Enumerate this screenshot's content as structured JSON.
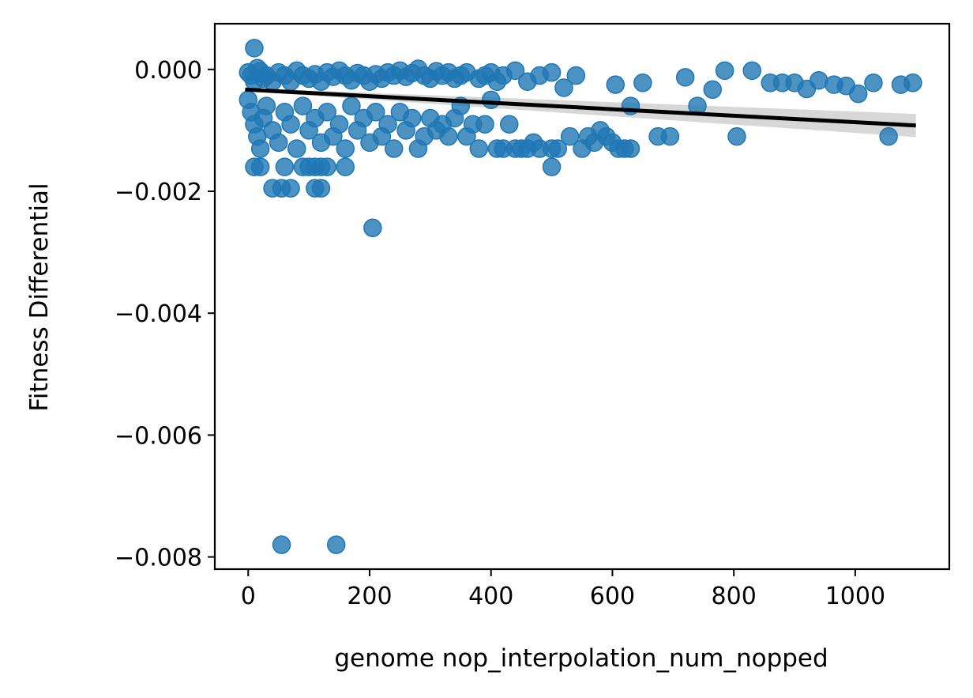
{
  "chart_data": {
    "type": "scatter",
    "xlabel": "genome nop_interpolation_num_nopped",
    "ylabel": "Fitness Differential",
    "xlim": [
      -55,
      1155
    ],
    "ylim": [
      -0.0082,
      0.00075
    ],
    "x_ticks": [
      0,
      200,
      400,
      600,
      800,
      1000
    ],
    "y_ticks": [
      0.0,
      -0.002,
      -0.004,
      -0.006,
      -0.008
    ],
    "x_tick_labels": [
      "0",
      "200",
      "400",
      "600",
      "800",
      "1000"
    ],
    "y_tick_labels": [
      "0.000",
      "−0.002",
      "−0.004",
      "−0.006",
      "−0.008"
    ],
    "grid": false,
    "legend": false,
    "point_color": "#1f77b4",
    "line_color": "#000000",
    "band_color": "#d0d0d0",
    "series": [
      {
        "points": [
          [
            0,
            -5e-05
          ],
          [
            5,
            -0.0001
          ],
          [
            10,
            -0.0002
          ],
          [
            15,
            2e-05
          ],
          [
            20,
            -3e-05
          ],
          [
            25,
            -0.00015
          ],
          [
            30,
            -0.0001
          ],
          [
            40,
            -0.0002
          ],
          [
            50,
            -5e-05
          ],
          [
            60,
            -0.0001
          ],
          [
            70,
            -0.0002
          ],
          [
            80,
            -2e-05
          ],
          [
            90,
            -0.0001
          ],
          [
            100,
            -0.00015
          ],
          [
            110,
            -8e-05
          ],
          [
            120,
            -0.0002
          ],
          [
            130,
            -5e-05
          ],
          [
            140,
            -0.00012
          ],
          [
            150,
            -2e-05
          ],
          [
            160,
            -0.0001
          ],
          [
            170,
            -0.00018
          ],
          [
            180,
            -6e-05
          ],
          [
            190,
            -0.0001
          ],
          [
            200,
            -0.0002
          ],
          [
            210,
            -8e-05
          ],
          [
            220,
            -0.00015
          ],
          [
            230,
            -5e-05
          ],
          [
            240,
            -0.0001
          ],
          [
            250,
            -2e-05
          ],
          [
            260,
            -0.00012
          ],
          [
            270,
            -6e-05
          ],
          [
            280,
            1e-05
          ],
          [
            290,
            -0.0001
          ],
          [
            300,
            -0.00015
          ],
          [
            310,
            -3e-05
          ],
          [
            320,
            -0.0001
          ],
          [
            330,
            -5e-05
          ],
          [
            340,
            -0.00015
          ],
          [
            350,
            -0.0001
          ],
          [
            360,
            -5e-05
          ],
          [
            380,
            -0.00015
          ],
          [
            390,
            -0.0001
          ],
          [
            400,
            -5e-05
          ],
          [
            410,
            -0.0002
          ],
          [
            420,
            -0.0001
          ],
          [
            440,
            -2e-05
          ],
          [
            460,
            -0.0002
          ],
          [
            480,
            -0.0001
          ],
          [
            500,
            -5e-05
          ],
          [
            520,
            -0.0003
          ],
          [
            540,
            -0.0001
          ],
          [
            0,
            -0.0005
          ],
          [
            5,
            -0.0007
          ],
          [
            10,
            -0.0009
          ],
          [
            15,
            -0.0011
          ],
          [
            20,
            -0.0013
          ],
          [
            25,
            -0.0008
          ],
          [
            30,
            -0.0006
          ],
          [
            40,
            -0.001
          ],
          [
            50,
            -0.0012
          ],
          [
            60,
            -0.0007
          ],
          [
            70,
            -0.0009
          ],
          [
            80,
            -0.0013
          ],
          [
            90,
            -0.0006
          ],
          [
            100,
            -0.001
          ],
          [
            110,
            -0.0008
          ],
          [
            120,
            -0.0012
          ],
          [
            130,
            -0.0007
          ],
          [
            140,
            -0.0011
          ],
          [
            150,
            -0.0009
          ],
          [
            160,
            -0.0013
          ],
          [
            170,
            -0.0006
          ],
          [
            180,
            -0.001
          ],
          [
            190,
            -0.0008
          ],
          [
            200,
            -0.0012
          ],
          [
            210,
            -0.0007
          ],
          [
            220,
            -0.0011
          ],
          [
            230,
            -0.0009
          ],
          [
            240,
            -0.0013
          ],
          [
            250,
            -0.0007
          ],
          [
            260,
            -0.001
          ],
          [
            270,
            -0.0008
          ],
          [
            280,
            -0.0013
          ],
          [
            290,
            -0.0011
          ],
          [
            300,
            -0.0008
          ],
          [
            310,
            -0.001
          ],
          [
            320,
            -0.0009
          ],
          [
            330,
            -0.0011
          ],
          [
            340,
            -0.0008
          ],
          [
            350,
            -0.0006
          ],
          [
            360,
            -0.0011
          ],
          [
            370,
            -0.0009
          ],
          [
            380,
            -0.0013
          ],
          [
            390,
            -0.0009
          ],
          [
            400,
            -0.0005
          ],
          [
            410,
            -0.0013
          ],
          [
            420,
            -0.0013
          ],
          [
            430,
            -0.0009
          ],
          [
            440,
            -0.0013
          ],
          [
            450,
            -0.0013
          ],
          [
            460,
            -0.0013
          ],
          [
            470,
            -0.0012
          ],
          [
            480,
            -0.0013
          ],
          [
            500,
            -0.0013
          ],
          [
            510,
            -0.0013
          ],
          [
            530,
            -0.0011
          ],
          [
            550,
            -0.0013
          ],
          [
            560,
            -0.0011
          ],
          [
            570,
            -0.0012
          ],
          [
            580,
            -0.001
          ],
          [
            590,
            -0.0011
          ],
          [
            600,
            -0.0012
          ],
          [
            610,
            -0.0013
          ],
          [
            620,
            -0.0013
          ],
          [
            630,
            -0.0013
          ],
          [
            10,
            -0.0016
          ],
          [
            20,
            -0.0016
          ],
          [
            60,
            -0.0016
          ],
          [
            90,
            -0.0016
          ],
          [
            100,
            -0.0016
          ],
          [
            110,
            -0.0016
          ],
          [
            120,
            -0.0016
          ],
          [
            130,
            -0.0016
          ],
          [
            160,
            -0.0016
          ],
          [
            500,
            -0.0016
          ],
          [
            40,
            -0.00195
          ],
          [
            55,
            -0.00195
          ],
          [
            70,
            -0.00195
          ],
          [
            110,
            -0.00195
          ],
          [
            120,
            -0.00195
          ],
          [
            205,
            -0.0026
          ],
          [
            55,
            -0.0078
          ],
          [
            145,
            -0.0078
          ],
          [
            10,
            0.00035
          ],
          [
            605,
            -0.00025
          ],
          [
            650,
            -0.00022
          ],
          [
            720,
            -0.00013
          ],
          [
            785,
            -2e-05
          ],
          [
            830,
            -2e-05
          ],
          [
            860,
            -0.00022
          ],
          [
            880,
            -0.00022
          ],
          [
            900,
            -0.00022
          ],
          [
            920,
            -0.00032
          ],
          [
            940,
            -0.00018
          ],
          [
            965,
            -0.00025
          ],
          [
            985,
            -0.00027
          ],
          [
            1005,
            -0.0004
          ],
          [
            1030,
            -0.00022
          ],
          [
            1075,
            -0.00025
          ],
          [
            1095,
            -0.00022
          ],
          [
            630,
            -0.0006
          ],
          [
            740,
            -0.0006
          ],
          [
            765,
            -0.00033
          ],
          [
            675,
            -0.0011
          ],
          [
            695,
            -0.0011
          ],
          [
            805,
            -0.0011
          ],
          [
            1055,
            -0.0011
          ]
        ]
      }
    ],
    "regression": {
      "x": [
        -5,
        1100
      ],
      "y": [
        -0.00033,
        -0.00092
      ],
      "ci_lower": [
        -0.000355,
        -0.00111
      ],
      "ci_upper": [
        -0.000305,
        -0.00073
      ]
    }
  }
}
